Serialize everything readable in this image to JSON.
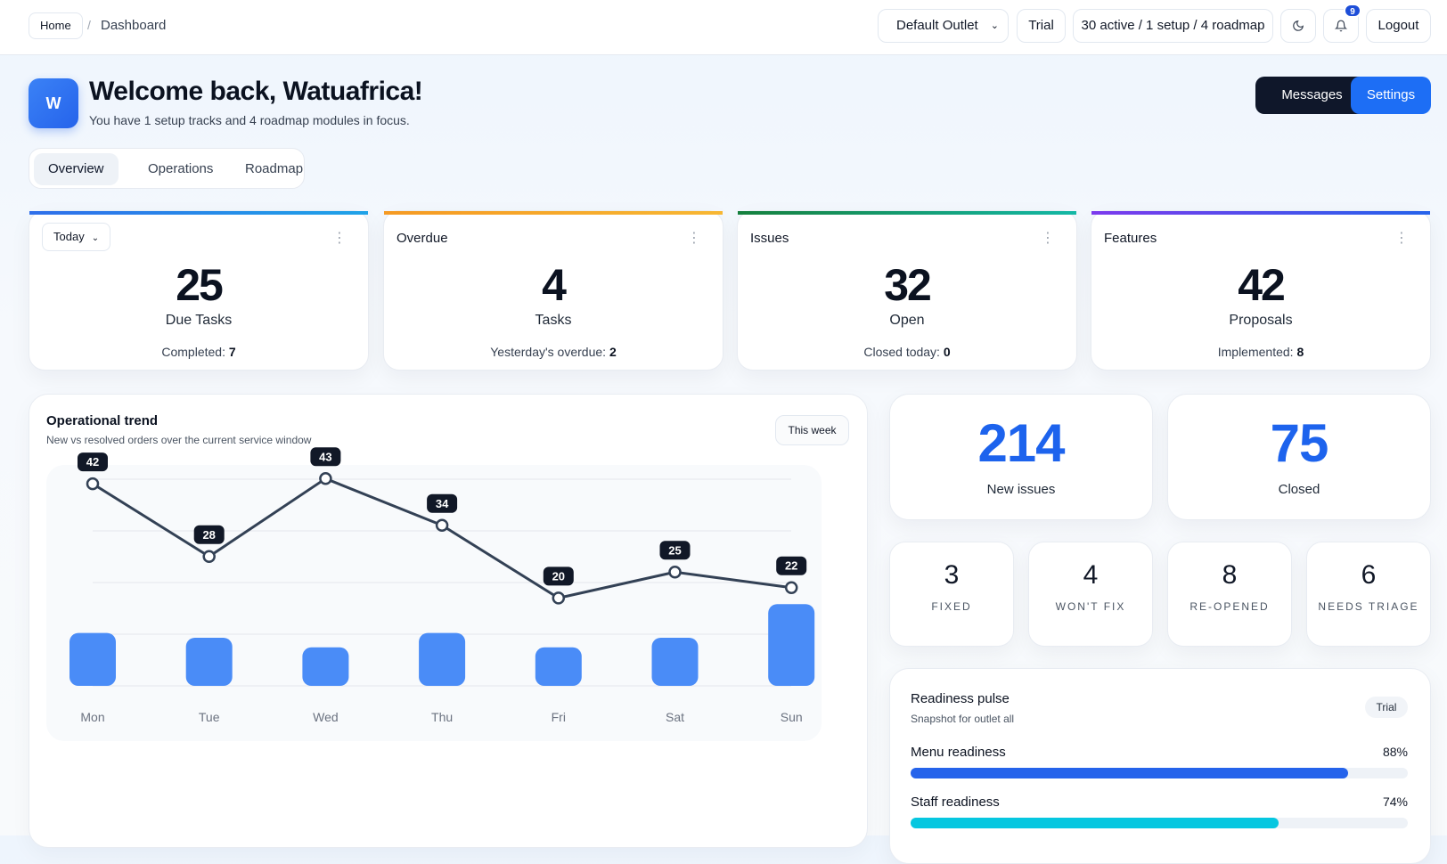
{
  "breadcrumb": {
    "home": "Home",
    "separator": "/",
    "current": "Dashboard"
  },
  "topbar": {
    "outlet_select": "Default Outlet",
    "trial": "Trial",
    "status": "30 active / 1 setup / 4 roadmap",
    "notifications_count": "9",
    "logout": "Logout",
    "theme_icon": "moon-icon",
    "bell_icon": "bell-icon"
  },
  "header": {
    "avatar_initial": "W",
    "welcome": "Welcome back, Watuafrica!",
    "subtitle": "You have 1 setup tracks and 4 roadmap modules in focus.",
    "messages": "Messages",
    "settings": "Settings"
  },
  "tabs": [
    "Overview",
    "Operations",
    "Roadmap"
  ],
  "stats": [
    {
      "label": "Today",
      "value": "25",
      "caption": "Due Tasks",
      "foot_label": "Completed:",
      "foot_value": "7",
      "color": "#2f6fea"
    },
    {
      "label": "Overdue",
      "value": "4",
      "caption": "Tasks",
      "foot_label": "Yesterday's overdue:",
      "foot_value": "2",
      "color": "#f59a23"
    },
    {
      "label": "Issues",
      "value": "32",
      "caption": "Open",
      "foot_label": "Closed today:",
      "foot_value": "0",
      "color": "#179d8e"
    },
    {
      "label": "Features",
      "value": "42",
      "caption": "Proposals",
      "foot_label": "Implemented:",
      "foot_value": "8",
      "color": "#7c3aed"
    }
  ],
  "chart": {
    "title": "Operational trend",
    "subtitle": "New vs resolved orders over the current service window",
    "range_button": "This week"
  },
  "chart_data": {
    "type": "line",
    "categories": [
      "Mon",
      "Tue",
      "Wed",
      "Thu",
      "Fri",
      "Sat",
      "Sun"
    ],
    "series": [
      {
        "values": [
          42,
          28,
          43,
          34,
          20,
          25,
          22
        ]
      }
    ],
    "bar_values": [
      11,
      10,
      8,
      11,
      8,
      10,
      17
    ],
    "colors": {
      "line": "#334155",
      "bar": "#4a8cf7"
    }
  },
  "issues_summary": [
    {
      "value": "214",
      "caption": "New issues"
    },
    {
      "value": "75",
      "caption": "Closed"
    }
  ],
  "issue_breakdown": [
    {
      "value": "3",
      "caption": "FIXED"
    },
    {
      "value": "4",
      "caption": "WON'T FIX"
    },
    {
      "value": "8",
      "caption": "RE-OPENED"
    },
    {
      "value": "6",
      "caption": "NEEDS TRIAGE"
    }
  ],
  "readiness": {
    "title": "Readiness pulse",
    "subtitle": "Snapshot for outlet all",
    "badge": "Trial",
    "metrics": [
      {
        "label": "Menu readiness",
        "value_text": "88%",
        "value": 0.88,
        "color": "#2563eb"
      },
      {
        "label": "Staff readiness",
        "value_text": "74%",
        "value": 0.74,
        "color": "#06c7e0"
      }
    ]
  }
}
